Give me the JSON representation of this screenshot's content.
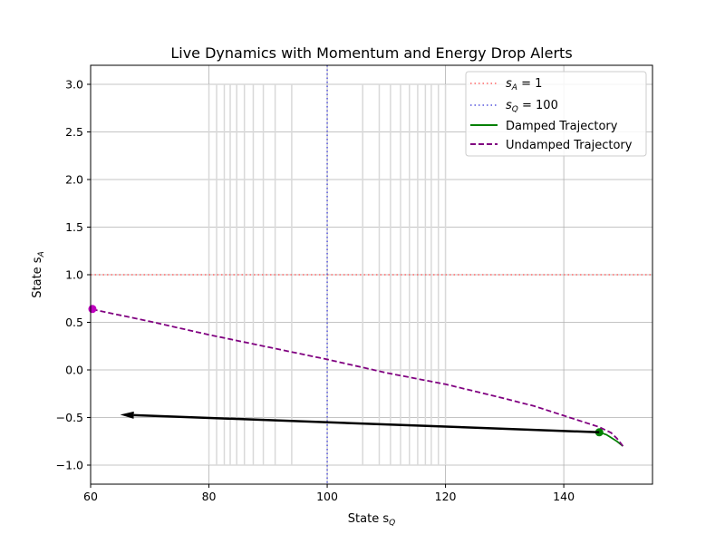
{
  "chart_data": {
    "type": "line",
    "title": "Live Dynamics with Momentum and Energy Drop Alerts",
    "xlabel": "State s",
    "xlabel_sub": "Q",
    "ylabel": "State s",
    "ylabel_sub": "A",
    "xlim": [
      60,
      155
    ],
    "ylim": [
      -1.2,
      3.2
    ],
    "xticks": [
      60,
      80,
      100,
      120,
      140
    ],
    "xtick_labels": [
      "60",
      "80",
      "100",
      "120",
      "140"
    ],
    "yticks": [
      -1.0,
      -0.5,
      0.0,
      0.5,
      1.0,
      1.5,
      2.0,
      2.5,
      3.0
    ],
    "ytick_labels": [
      "−1.0",
      "−0.5",
      "0.0",
      "0.5",
      "1.0",
      "1.5",
      "2.0",
      "2.5",
      "3.0"
    ],
    "grid": true,
    "legend_position": "top-right",
    "reference_lines": [
      {
        "orientation": "horizontal",
        "value": 1,
        "label_var": "s",
        "label_sub": "A",
        "label_rest": " = 1",
        "color": "#ff6666",
        "style": "dotted"
      },
      {
        "orientation": "vertical",
        "value": 100,
        "label_var": "s",
        "label_sub": "Q",
        "label_rest": " = 100",
        "color": "#5555dd",
        "style": "dotted"
      }
    ],
    "contour_lines_x": [
      80,
      81.3,
      82.6,
      83.6,
      84.7,
      86.0,
      87.5,
      89.2,
      91.2,
      94.0,
      106.0,
      108.8,
      110.7,
      112.4,
      113.9,
      115.3,
      116.6,
      117.6,
      118.8,
      120
    ],
    "contour_color": "#d9d9d9",
    "contour_y_range": [
      -1.0,
      3.0
    ],
    "series": [
      {
        "name": "Damped Trajectory",
        "color": "#008000",
        "style": "solid",
        "x": [
          150,
          149,
          148,
          147.2,
          146.5,
          146
        ],
        "y": [
          -0.8,
          -0.75,
          -0.71,
          -0.68,
          -0.665,
          -0.655
        ]
      },
      {
        "name": "Undamped Trajectory",
        "color": "#800080",
        "style": "dashed",
        "x": [
          150,
          149,
          148,
          146,
          144,
          140,
          135,
          130,
          120,
          110,
          100,
          90,
          80,
          70,
          60
        ],
        "y": [
          -0.8,
          -0.72,
          -0.66,
          -0.6,
          -0.56,
          -0.48,
          -0.38,
          -0.3,
          -0.15,
          -0.03,
          0.11,
          0.24,
          0.37,
          0.51,
          0.64
        ]
      }
    ],
    "markers": [
      {
        "x": 146,
        "y": -0.655,
        "color": "#008000"
      },
      {
        "x": 60.3,
        "y": 0.64,
        "color": "#bf00bf"
      }
    ],
    "arrow": {
      "from": [
        146,
        -0.655
      ],
      "to": [
        65,
        -0.47
      ],
      "color": "#000000"
    }
  }
}
